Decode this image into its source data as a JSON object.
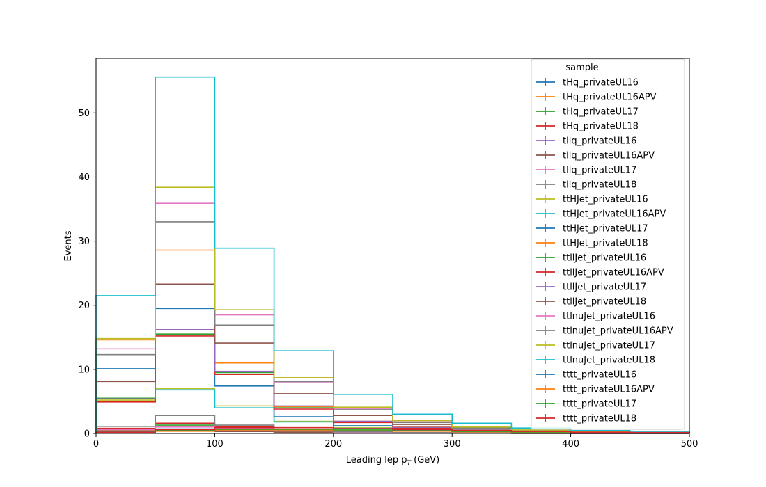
{
  "chart_data": {
    "type": "step-histogram",
    "xlabel": "Leading lep p",
    "xlabel_sub": "T",
    "xlabel_unit": " (GeV)",
    "ylabel": "Events",
    "xlim": [
      0,
      500
    ],
    "ylim": [
      0,
      58.5
    ],
    "xticks": [
      0,
      100,
      200,
      300,
      400,
      500
    ],
    "yticks": [
      0,
      10,
      20,
      30,
      40,
      50
    ],
    "bin_edges": [
      0,
      50,
      100,
      150,
      200,
      250,
      300,
      350,
      400,
      450,
      500
    ],
    "legend": {
      "title": "sample",
      "placement": "top-right"
    },
    "series": [
      {
        "name": "tHq_privateUL16",
        "color": "#1f77b4",
        "values": [
          0.5,
          0.7,
          0.5,
          0.3,
          0.2,
          0.1,
          0.05,
          0.03,
          0.02,
          0.01
        ]
      },
      {
        "name": "tHq_privateUL16APV",
        "color": "#ff7f0e",
        "values": [
          0.4,
          0.6,
          0.5,
          0.3,
          0.15,
          0.08,
          0.04,
          0.02,
          0.01,
          0.01
        ]
      },
      {
        "name": "tHq_privateUL17",
        "color": "#2ca02c",
        "values": [
          0.7,
          1.3,
          0.9,
          0.4,
          0.2,
          0.1,
          0.05,
          0.03,
          0.02,
          0.01
        ]
      },
      {
        "name": "tHq_privateUL18",
        "color": "#d62728",
        "values": [
          0.8,
          1.6,
          1.0,
          0.5,
          0.25,
          0.12,
          0.06,
          0.03,
          0.02,
          0.01
        ]
      },
      {
        "name": "tllq_privateUL16",
        "color": "#9467bd",
        "values": [
          0.3,
          0.5,
          0.4,
          0.2,
          0.1,
          0.05,
          0.03,
          0.02,
          0.01,
          0.01
        ]
      },
      {
        "name": "tllq_privateUL16APV",
        "color": "#8c564b",
        "values": [
          0.3,
          0.4,
          0.3,
          0.2,
          0.1,
          0.05,
          0.03,
          0.02,
          0.01,
          0.01
        ]
      },
      {
        "name": "tllq_privateUL17",
        "color": "#e377c2",
        "values": [
          0.6,
          1.0,
          0.8,
          0.4,
          0.2,
          0.1,
          0.05,
          0.03,
          0.02,
          0.01
        ]
      },
      {
        "name": "tllq_privateUL18",
        "color": "#7f7f7f",
        "values": [
          1.1,
          2.8,
          1.3,
          0.5,
          0.25,
          0.12,
          0.06,
          0.03,
          0.02,
          0.01
        ]
      },
      {
        "name": "ttHJet_privateUL16",
        "color": "#bcbd22",
        "values": [
          5.2,
          7.0,
          4.3,
          1.9,
          0.9,
          0.5,
          0.3,
          0.2,
          0.1,
          0.05
        ]
      },
      {
        "name": "ttHJet_privateUL16APV",
        "color": "#17becf",
        "values": [
          5.0,
          6.8,
          4.0,
          1.8,
          0.8,
          0.45,
          0.25,
          0.15,
          0.08,
          0.04
        ]
      },
      {
        "name": "ttHJet_privateUL17",
        "color": "#1f77b4",
        "values": [
          10.1,
          19.5,
          7.4,
          2.6,
          1.2,
          0.6,
          0.35,
          0.2,
          0.1,
          0.05
        ]
      },
      {
        "name": "ttHJet_privateUL18",
        "color": "#ff7f0e",
        "values": [
          14.6,
          28.6,
          11.0,
          4.2,
          1.9,
          1.0,
          0.5,
          0.3,
          0.15,
          0.08
        ]
      },
      {
        "name": "ttllJet_privateUL16",
        "color": "#2ca02c",
        "values": [
          5.5,
          15.5,
          9.5,
          4.0,
          1.8,
          0.9,
          0.45,
          0.25,
          0.12,
          0.06
        ]
      },
      {
        "name": "ttllJet_privateUL16APV",
        "color": "#d62728",
        "values": [
          4.9,
          15.2,
          9.2,
          3.8,
          1.7,
          0.85,
          0.42,
          0.22,
          0.11,
          0.06
        ]
      },
      {
        "name": "ttllJet_privateUL17",
        "color": "#9467bd",
        "values": [
          5.4,
          16.2,
          9.7,
          4.3,
          1.9,
          0.95,
          0.5,
          0.28,
          0.14,
          0.07
        ]
      },
      {
        "name": "ttllJet_privateUL18",
        "color": "#8c564b",
        "values": [
          8.1,
          23.3,
          14.1,
          6.2,
          2.8,
          1.4,
          0.7,
          0.4,
          0.2,
          0.1
        ]
      },
      {
        "name": "ttlnuJet_privateUL16",
        "color": "#e377c2",
        "values": [
          13.2,
          35.9,
          18.5,
          7.9,
          3.9,
          1.8,
          0.9,
          0.5,
          0.25,
          0.12
        ]
      },
      {
        "name": "ttlnuJet_privateUL16APV",
        "color": "#7f7f7f",
        "values": [
          12.3,
          33.0,
          16.9,
          8.1,
          3.7,
          1.7,
          0.85,
          0.45,
          0.22,
          0.1
        ]
      },
      {
        "name": "ttlnuJet_privateUL17",
        "color": "#bcbd22",
        "values": [
          14.8,
          38.4,
          19.3,
          8.7,
          4.1,
          2.0,
          1.0,
          0.55,
          0.28,
          0.14
        ]
      },
      {
        "name": "ttlnuJet_privateUL18",
        "color": "#17becf",
        "values": [
          21.5,
          55.6,
          28.9,
          12.9,
          6.1,
          3.0,
          1.6,
          0.85,
          0.45,
          0.22
        ]
      },
      {
        "name": "tttt_privateUL16",
        "color": "#1f77b4",
        "values": [
          0.1,
          0.4,
          0.6,
          0.6,
          0.5,
          0.4,
          0.3,
          0.2,
          0.15,
          0.1
        ]
      },
      {
        "name": "tttt_privateUL16APV",
        "color": "#ff7f0e",
        "values": [
          0.1,
          0.35,
          0.55,
          0.55,
          0.45,
          0.35,
          0.25,
          0.18,
          0.12,
          0.08
        ]
      },
      {
        "name": "tttt_privateUL17",
        "color": "#2ca02c",
        "values": [
          0.12,
          0.45,
          0.65,
          0.65,
          0.55,
          0.42,
          0.32,
          0.22,
          0.16,
          0.1
        ]
      },
      {
        "name": "tttt_privateUL18",
        "color": "#d62728",
        "values": [
          0.15,
          0.6,
          0.9,
          0.9,
          0.75,
          0.6,
          0.45,
          0.3,
          0.2,
          0.15
        ]
      }
    ]
  }
}
